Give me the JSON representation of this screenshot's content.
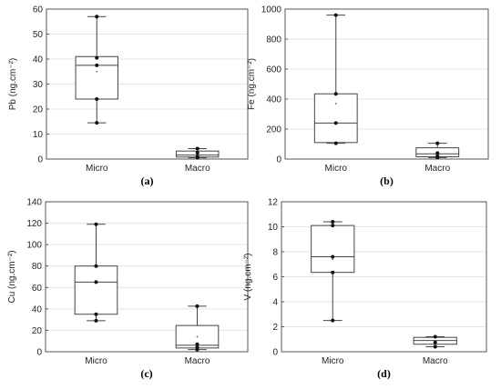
{
  "chart_data": [
    {
      "id": "a",
      "type": "box",
      "panel_label": "(a)",
      "ylabel": "Pb (ng.cm⁻²)",
      "ylim": [
        0,
        60
      ],
      "yticks": [
        0,
        10,
        20,
        30,
        40,
        50,
        60
      ],
      "categories": [
        "Micro",
        "Macro"
      ],
      "boxes": [
        {
          "category": "Micro",
          "min": 14.5,
          "q1": 24,
          "median": 37.5,
          "q3": 41,
          "max": 57,
          "mean": 35,
          "points": [
            14.5,
            24,
            37.5,
            40.5,
            57
          ]
        },
        {
          "category": "Macro",
          "min": 0.5,
          "q1": 0.8,
          "median": 1.6,
          "q3": 3.2,
          "max": 4.2,
          "mean": 1.8,
          "points": [
            0.5,
            1.0,
            2.5,
            4.2
          ]
        }
      ]
    },
    {
      "id": "b",
      "type": "box",
      "panel_label": "(b)",
      "ylabel": "Fe (ng.cm⁻²)",
      "ylim": [
        0,
        1000
      ],
      "yticks": [
        0,
        200,
        400,
        600,
        800,
        1000
      ],
      "categories": [
        "Micro",
        "Macro"
      ],
      "boxes": [
        {
          "category": "Micro",
          "min": 105,
          "q1": 110,
          "median": 240,
          "q3": 435,
          "max": 960,
          "mean": 370,
          "points": [
            105,
            240,
            435,
            960
          ]
        },
        {
          "category": "Macro",
          "min": 10,
          "q1": 15,
          "median": 35,
          "q3": 75,
          "max": 105,
          "mean": 45,
          "points": [
            10,
            20,
            40,
            105
          ]
        }
      ]
    },
    {
      "id": "c",
      "type": "box",
      "panel_label": "(c)",
      "ylabel": "Cu (ng.cm⁻²)",
      "ylim": [
        0,
        140
      ],
      "yticks": [
        0,
        20,
        40,
        60,
        80,
        100,
        120,
        140
      ],
      "categories": [
        "Micro",
        "Macro"
      ],
      "boxes": [
        {
          "category": "Micro",
          "min": 29,
          "q1": 35,
          "median": 65,
          "q3": 80,
          "max": 119,
          "mean": 65,
          "points": [
            29,
            35,
            65,
            80,
            119
          ]
        },
        {
          "category": "Macro",
          "min": 2,
          "q1": 3.5,
          "median": 6,
          "q3": 24.5,
          "max": 42.5,
          "mean": 14,
          "points": [
            2,
            4,
            7,
            42.5
          ]
        }
      ]
    },
    {
      "id": "d",
      "type": "box",
      "panel_label": "(d)",
      "ylabel": "V (ng.cm⁻²)",
      "ylim": [
        0,
        12
      ],
      "yticks": [
        0,
        2,
        4,
        6,
        8,
        10,
        12
      ],
      "categories": [
        "Micro",
        "Macro"
      ],
      "boxes": [
        {
          "category": "Micro",
          "min": 2.5,
          "q1": 6.35,
          "median": 7.6,
          "q3": 10.1,
          "max": 10.4,
          "mean": 7.4,
          "points": [
            2.5,
            6.35,
            7.6,
            10.1,
            10.4
          ]
        },
        {
          "category": "Macro",
          "min": 0.4,
          "q1": 0.6,
          "median": 0.9,
          "q3": 1.15,
          "max": 1.2,
          "mean": 0.85,
          "points": [
            0.4,
            0.75,
            1.2
          ]
        }
      ]
    }
  ]
}
